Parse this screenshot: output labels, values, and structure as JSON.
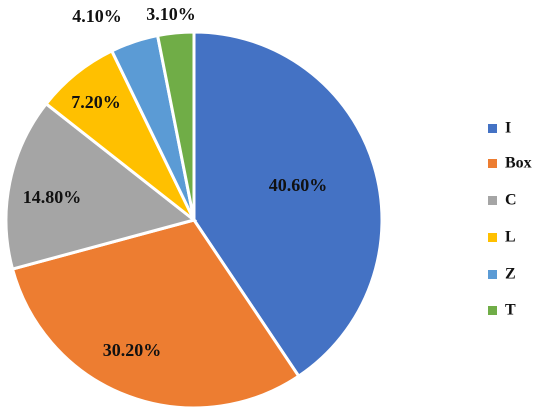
{
  "chart_data": {
    "type": "pie",
    "categories": [
      "I",
      "Box",
      "C",
      "L",
      "Z",
      "T"
    ],
    "values": [
      40.6,
      30.2,
      14.8,
      7.2,
      4.1,
      3.1
    ],
    "labels": [
      "40.60%",
      "30.20%",
      "14.80%",
      "7.20%",
      "4.10%",
      "3.10%"
    ],
    "colors": [
      "#4472C4",
      "#ED7D31",
      "#A5A5A5",
      "#FFC000",
      "#5B9BD5",
      "#70AD47"
    ],
    "start_angle_deg": 0,
    "direction": "clockwise",
    "legend": "right"
  }
}
